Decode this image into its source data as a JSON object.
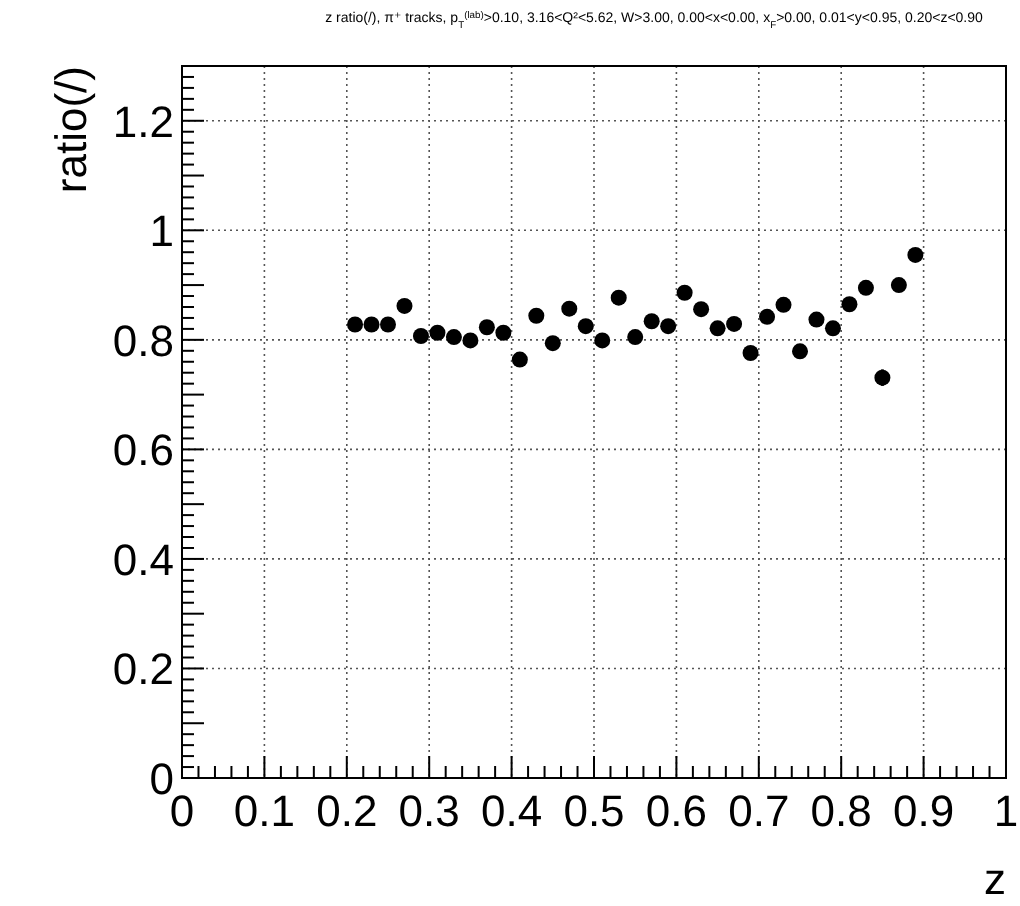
{
  "chart_data": {
    "type": "scatter",
    "title": "z ratio(/), π⁺ tracks, p$_{T}$$^{(lab)}$>0.10, 3.16<Q²<5.62, W>3.00, 0.00<x<0.00, x$_{F}$>0.00, 0.01<y<0.95, 0.20<z<0.90",
    "xlabel": "z",
    "ylabel": "ratio(/)",
    "x": [
      0.21,
      0.23,
      0.25,
      0.27,
      0.29,
      0.31,
      0.33,
      0.35,
      0.37,
      0.39,
      0.41,
      0.43,
      0.45,
      0.47,
      0.49,
      0.51,
      0.53,
      0.55,
      0.57,
      0.59,
      0.61,
      0.63,
      0.65,
      0.67,
      0.69,
      0.71,
      0.73,
      0.75,
      0.77,
      0.79,
      0.81,
      0.83,
      0.85,
      0.87,
      0.89
    ],
    "series": [
      {
        "color": "#000000",
        "values": [
          0.828,
          0.828,
          0.828,
          0.862,
          0.807,
          0.813,
          0.805,
          0.799,
          0.823,
          0.813,
          0.764,
          0.844,
          0.794,
          0.857,
          0.825,
          0.799,
          0.877,
          0.805,
          0.834,
          0.825,
          0.886,
          0.856,
          0.821,
          0.829,
          0.776,
          0.842,
          0.864,
          0.779,
          0.837,
          0.821,
          0.865,
          0.895,
          0.731,
          0.9,
          0.955
        ],
        "errors": [
          null,
          null,
          null,
          null,
          null,
          null,
          null,
          null,
          null,
          null,
          null,
          null,
          null,
          null,
          null,
          null,
          null,
          null,
          null,
          null,
          null,
          null,
          null,
          null,
          null,
          null,
          null,
          null,
          null,
          null,
          null,
          null,
          0.015,
          null,
          null
        ]
      }
    ],
    "xlim": [
      0,
      1
    ],
    "ylim": [
      0,
      1.3
    ],
    "xticks": [
      0,
      0.1,
      0.2,
      0.3,
      0.4,
      0.5,
      0.6,
      0.7,
      0.8,
      0.9,
      1
    ],
    "yticks": [
      0,
      0.2,
      0.4,
      0.6,
      0.8,
      1,
      1.2
    ],
    "grid": true,
    "marker": "circle"
  }
}
